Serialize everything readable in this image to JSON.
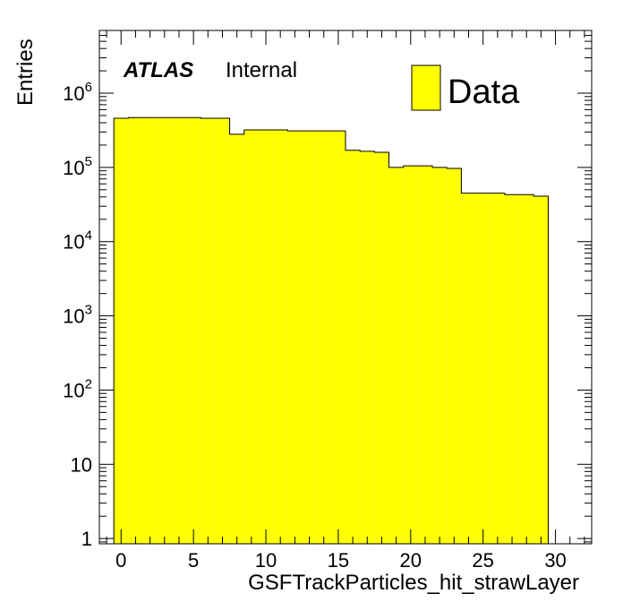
{
  "chart_data": {
    "type": "bar",
    "histogram": true,
    "y_scale": "log",
    "bin_edges": [
      -0.5,
      0.5,
      1.5,
      2.5,
      3.5,
      4.5,
      5.5,
      6.5,
      7.5,
      8.5,
      9.5,
      10.5,
      11.5,
      12.5,
      13.5,
      14.5,
      15.5,
      16.5,
      17.5,
      18.5,
      19.5,
      20.5,
      21.5,
      22.5,
      23.5,
      24.5,
      25.5,
      26.5,
      27.5,
      28.5,
      29.5
    ],
    "series": [
      {
        "name": "Data",
        "color": "#ffff00",
        "values": [
          460000,
          470000,
          470000,
          470000,
          470000,
          470000,
          460000,
          460000,
          280000,
          320000,
          320000,
          320000,
          310000,
          310000,
          310000,
          310000,
          170000,
          165000,
          160000,
          100000,
          105000,
          105000,
          100000,
          97000,
          45000,
          45000,
          45000,
          43000,
          43000,
          41000
        ]
      }
    ],
    "xlabel": "GSFTrackParticles_hit_strawLayer",
    "ylabel": "Entries",
    "xlim": [
      -1.5,
      32.5
    ],
    "ylim": [
      0.85,
      7000000
    ],
    "x_ticks": [
      {
        "value": 0,
        "label": "0"
      },
      {
        "value": 5,
        "label": "5"
      },
      {
        "value": 10,
        "label": "10"
      },
      {
        "value": 15,
        "label": "15"
      },
      {
        "value": 20,
        "label": "20"
      },
      {
        "value": 25,
        "label": "25"
      },
      {
        "value": 30,
        "label": "30"
      }
    ],
    "y_ticks": [
      {
        "value": 1,
        "base": "1",
        "exp": ""
      },
      {
        "value": 10,
        "base": "10",
        "exp": ""
      },
      {
        "value": 100,
        "base": "10",
        "exp": "2"
      },
      {
        "value": 1000,
        "base": "10",
        "exp": "3"
      },
      {
        "value": 10000,
        "base": "10",
        "exp": "4"
      },
      {
        "value": 100000,
        "base": "10",
        "exp": "5"
      },
      {
        "value": 1000000,
        "base": "10",
        "exp": "6"
      }
    ],
    "experiment_label": "ATLAS",
    "status_label": "Internal",
    "legend": {
      "position": "top-right",
      "entries": [
        "Data"
      ]
    },
    "grid": false
  }
}
